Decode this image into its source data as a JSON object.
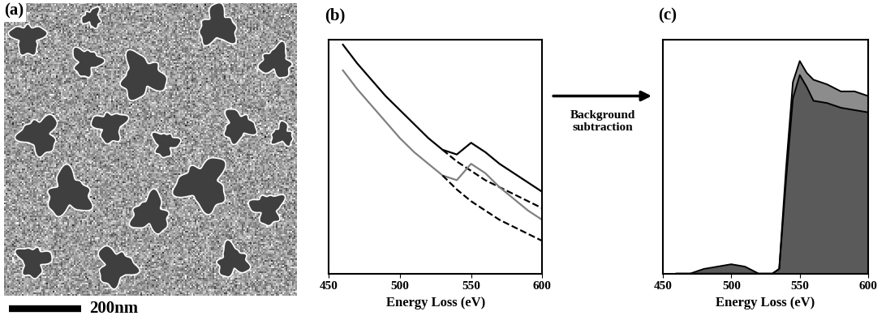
{
  "chart_data": [
    {
      "type": "image",
      "title": "(a)",
      "xlim": [
        0,
        810
      ],
      "scale_bar": {
        "length": 200,
        "label": "200nm"
      }
    },
    {
      "type": "line",
      "title": "(b)",
      "xlabel": "Energy Loss (eV)",
      "xlim": [
        450,
        600
      ],
      "xticks": [
        450,
        500,
        550,
        600
      ],
      "ylim": [
        0,
        100
      ],
      "yticks": [],
      "tick_labels": "x",
      "series": [
        {
          "color": "#000000",
          "line_style": "solid",
          "x": [
            460,
            470,
            480,
            490,
            500,
            510,
            520,
            530,
            540,
            550,
            560,
            570,
            580,
            590,
            600
          ],
          "values": [
            98,
            90,
            83,
            76,
            70,
            64,
            58,
            53,
            51,
            56,
            52,
            47,
            43,
            39,
            35
          ]
        },
        {
          "color": "#000000",
          "line_style": "dashed",
          "x": [
            530,
            540,
            550,
            560,
            570,
            580,
            590,
            600
          ],
          "values": [
            53,
            48,
            44,
            40,
            37,
            34,
            31,
            28
          ]
        },
        {
          "color": "#808080",
          "line_style": "solid",
          "x": [
            460,
            470,
            480,
            490,
            500,
            510,
            520,
            530,
            540,
            550,
            560,
            570,
            580,
            590,
            600
          ],
          "values": [
            87,
            79,
            72,
            65,
            58,
            52,
            47,
            42,
            40,
            47,
            43,
            37,
            32,
            27,
            23
          ]
        },
        {
          "color": "#000000",
          "line_style": "dashed",
          "x": [
            530,
            540,
            550,
            560,
            570,
            580,
            590,
            600
          ],
          "values": [
            42,
            36,
            31,
            27,
            23,
            20,
            17,
            14
          ]
        }
      ]
    },
    {
      "type": "area",
      "title": "(c)",
      "xlabel": "Energy Loss (eV)",
      "xlim": [
        450,
        600
      ],
      "xticks": [
        450,
        500,
        550,
        600
      ],
      "ylim": [
        0,
        100
      ],
      "yticks": [],
      "tick_labels": "x",
      "annotations": [
        "Background\nsubtraction"
      ],
      "x": [
        460,
        470,
        480,
        490,
        500,
        510,
        520,
        530,
        535,
        540,
        545,
        550,
        555,
        560,
        570,
        580,
        590,
        600
      ],
      "series": [
        {
          "color": "#8c8c8c",
          "values": [
            0,
            0,
            0,
            0,
            0,
            0,
            0,
            0,
            2,
            45,
            82,
            91,
            86,
            83,
            81,
            78,
            78,
            76
          ]
        },
        {
          "color": "#5a5a5a",
          "values": [
            0,
            0,
            2,
            3,
            4,
            3,
            0,
            0,
            2,
            40,
            75,
            85,
            80,
            74,
            73,
            71,
            70,
            69
          ]
        }
      ]
    }
  ]
}
